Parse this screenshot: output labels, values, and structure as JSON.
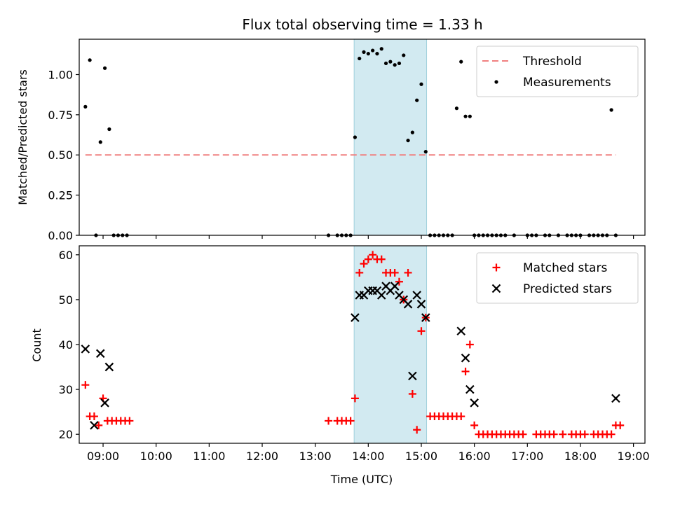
{
  "chart_data": [
    {
      "type": "scatter",
      "title": "Flux total observing time = 1.33 h",
      "xlabel": "",
      "ylabel": "Matched/Predicted stars",
      "ylim": [
        0,
        1.22
      ],
      "yticks": [
        "0.00",
        "0.25",
        "0.50",
        "0.75",
        "1.00"
      ],
      "ytick_values": [
        0,
        0.25,
        0.5,
        0.75,
        1.0
      ],
      "xlim": [
        "08:33",
        "19:13"
      ],
      "highlight_span": [
        "13:44",
        "15:06"
      ],
      "legend_position": "top-right",
      "threshold": {
        "name": "Threshold",
        "value": 0.5,
        "x_start": "08:40",
        "x_end": "18:40",
        "color": "#f08080"
      },
      "series": [
        {
          "name": "Measurements",
          "color": "#000000",
          "marker": "dot",
          "points": [
            [
              "08:40",
              0.8
            ],
            [
              "08:45",
              1.09
            ],
            [
              "08:52",
              0.0
            ],
            [
              "08:57",
              0.58
            ],
            [
              "09:02",
              1.04
            ],
            [
              "09:07",
              0.66
            ],
            [
              "09:12",
              0.0
            ],
            [
              "09:17",
              0.0
            ],
            [
              "09:22",
              0.0
            ],
            [
              "09:27",
              0.0
            ],
            [
              "13:15",
              0.0
            ],
            [
              "13:25",
              0.0
            ],
            [
              "13:30",
              0.0
            ],
            [
              "13:35",
              0.0
            ],
            [
              "13:40",
              0.0
            ],
            [
              "13:45",
              0.61
            ],
            [
              "13:50",
              1.1
            ],
            [
              "13:55",
              1.14
            ],
            [
              "14:00",
              1.13
            ],
            [
              "14:05",
              1.15
            ],
            [
              "14:10",
              1.13
            ],
            [
              "14:15",
              1.16
            ],
            [
              "14:20",
              1.07
            ],
            [
              "14:25",
              1.08
            ],
            [
              "14:30",
              1.06
            ],
            [
              "14:35",
              1.07
            ],
            [
              "14:40",
              1.12
            ],
            [
              "14:45",
              0.59
            ],
            [
              "14:50",
              0.64
            ],
            [
              "14:55",
              0.84
            ],
            [
              "15:00",
              0.94
            ],
            [
              "15:05",
              0.52
            ],
            [
              "15:10",
              0.0
            ],
            [
              "15:15",
              0.0
            ],
            [
              "15:20",
              0.0
            ],
            [
              "15:25",
              0.0
            ],
            [
              "15:30",
              0.0
            ],
            [
              "15:35",
              0.0
            ],
            [
              "15:40",
              0.79
            ],
            [
              "15:45",
              1.08
            ],
            [
              "15:50",
              0.74
            ],
            [
              "15:55",
              0.74
            ],
            [
              "16:00",
              0.0
            ],
            [
              "16:05",
              0.0
            ],
            [
              "16:10",
              0.0
            ],
            [
              "16:15",
              0.0
            ],
            [
              "16:20",
              0.0
            ],
            [
              "16:25",
              0.0
            ],
            [
              "16:30",
              0.0
            ],
            [
              "16:35",
              0.0
            ],
            [
              "16:45",
              0.0
            ],
            [
              "17:00",
              0.0
            ],
            [
              "17:05",
              0.0
            ],
            [
              "17:10",
              0.0
            ],
            [
              "17:20",
              0.0
            ],
            [
              "17:25",
              0.0
            ],
            [
              "17:35",
              0.0
            ],
            [
              "17:45",
              0.0
            ],
            [
              "17:50",
              0.0
            ],
            [
              "17:55",
              0.0
            ],
            [
              "18:00",
              0.0
            ],
            [
              "18:10",
              0.0
            ],
            [
              "18:15",
              0.0
            ],
            [
              "18:20",
              0.0
            ],
            [
              "18:25",
              0.0
            ],
            [
              "18:30",
              0.0
            ],
            [
              "18:35",
              0.78
            ],
            [
              "18:40",
              0.0
            ]
          ]
        }
      ]
    },
    {
      "type": "scatter",
      "title": "",
      "xlabel": "Time (UTC)",
      "ylabel": "Count",
      "ylim": [
        18,
        62
      ],
      "yticks": [
        "20",
        "30",
        "40",
        "50",
        "60"
      ],
      "ytick_values": [
        20,
        30,
        40,
        50,
        60
      ],
      "xlim": [
        "08:33",
        "19:13"
      ],
      "xticks": [
        "09:00",
        "10:00",
        "11:00",
        "12:00",
        "13:00",
        "14:00",
        "15:00",
        "16:00",
        "17:00",
        "18:00",
        "19:00"
      ],
      "highlight_span": [
        "13:44",
        "15:06"
      ],
      "legend_position": "top-right",
      "series": [
        {
          "name": "Matched stars",
          "color": "#ff0000",
          "marker": "plus",
          "points": [
            [
              "08:40",
              31
            ],
            [
              "08:45",
              24
            ],
            [
              "08:50",
              24
            ],
            [
              "08:55",
              22
            ],
            [
              "09:00",
              28
            ],
            [
              "09:05",
              23
            ],
            [
              "09:10",
              23
            ],
            [
              "09:15",
              23
            ],
            [
              "09:20",
              23
            ],
            [
              "09:25",
              23
            ],
            [
              "09:30",
              23
            ],
            [
              "13:15",
              23
            ],
            [
              "13:25",
              23
            ],
            [
              "13:30",
              23
            ],
            [
              "13:35",
              23
            ],
            [
              "13:40",
              23
            ],
            [
              "13:45",
              28
            ],
            [
              "13:50",
              56
            ],
            [
              "13:55",
              58
            ],
            [
              "14:00",
              59
            ],
            [
              "14:05",
              60
            ],
            [
              "14:10",
              59
            ],
            [
              "14:15",
              59
            ],
            [
              "14:20",
              56
            ],
            [
              "14:25",
              56
            ],
            [
              "14:30",
              56
            ],
            [
              "14:35",
              54
            ],
            [
              "14:40",
              50
            ],
            [
              "14:45",
              56
            ],
            [
              "14:50",
              29
            ],
            [
              "14:55",
              21
            ],
            [
              "15:00",
              43
            ],
            [
              "15:05",
              46
            ],
            [
              "15:10",
              24
            ],
            [
              "15:15",
              24
            ],
            [
              "15:20",
              24
            ],
            [
              "15:25",
              24
            ],
            [
              "15:30",
              24
            ],
            [
              "15:35",
              24
            ],
            [
              "15:40",
              24
            ],
            [
              "15:45",
              24
            ],
            [
              "15:50",
              34
            ],
            [
              "15:55",
              40
            ],
            [
              "16:00",
              22
            ],
            [
              "16:05",
              20
            ],
            [
              "16:10",
              20
            ],
            [
              "16:15",
              20
            ],
            [
              "16:20",
              20
            ],
            [
              "16:25",
              20
            ],
            [
              "16:30",
              20
            ],
            [
              "16:35",
              20
            ],
            [
              "16:40",
              20
            ],
            [
              "16:45",
              20
            ],
            [
              "16:50",
              20
            ],
            [
              "16:55",
              20
            ],
            [
              "17:10",
              20
            ],
            [
              "17:15",
              20
            ],
            [
              "17:20",
              20
            ],
            [
              "17:25",
              20
            ],
            [
              "17:30",
              20
            ],
            [
              "17:40",
              20
            ],
            [
              "17:50",
              20
            ],
            [
              "17:55",
              20
            ],
            [
              "18:00",
              20
            ],
            [
              "18:05",
              20
            ],
            [
              "18:15",
              20
            ],
            [
              "18:20",
              20
            ],
            [
              "18:25",
              20
            ],
            [
              "18:30",
              20
            ],
            [
              "18:35",
              20
            ],
            [
              "18:40",
              22
            ],
            [
              "18:45",
              22
            ]
          ]
        },
        {
          "name": "Predicted stars",
          "color": "#000000",
          "marker": "x",
          "points": [
            [
              "08:40",
              39
            ],
            [
              "08:50",
              22
            ],
            [
              "08:57",
              38
            ],
            [
              "09:02",
              27
            ],
            [
              "09:07",
              35
            ],
            [
              "13:45",
              46
            ],
            [
              "13:50",
              51
            ],
            [
              "13:55",
              51
            ],
            [
              "14:00",
              52
            ],
            [
              "14:05",
              52
            ],
            [
              "14:10",
              52
            ],
            [
              "14:15",
              51
            ],
            [
              "14:20",
              53
            ],
            [
              "14:25",
              52
            ],
            [
              "14:30",
              53
            ],
            [
              "14:35",
              51
            ],
            [
              "14:40",
              50
            ],
            [
              "14:45",
              49
            ],
            [
              "14:50",
              33
            ],
            [
              "14:55",
              51
            ],
            [
              "15:00",
              49
            ],
            [
              "15:05",
              46
            ],
            [
              "15:45",
              43
            ],
            [
              "15:50",
              37
            ],
            [
              "15:55",
              30
            ],
            [
              "16:00",
              27
            ],
            [
              "18:40",
              28
            ]
          ]
        }
      ]
    }
  ]
}
